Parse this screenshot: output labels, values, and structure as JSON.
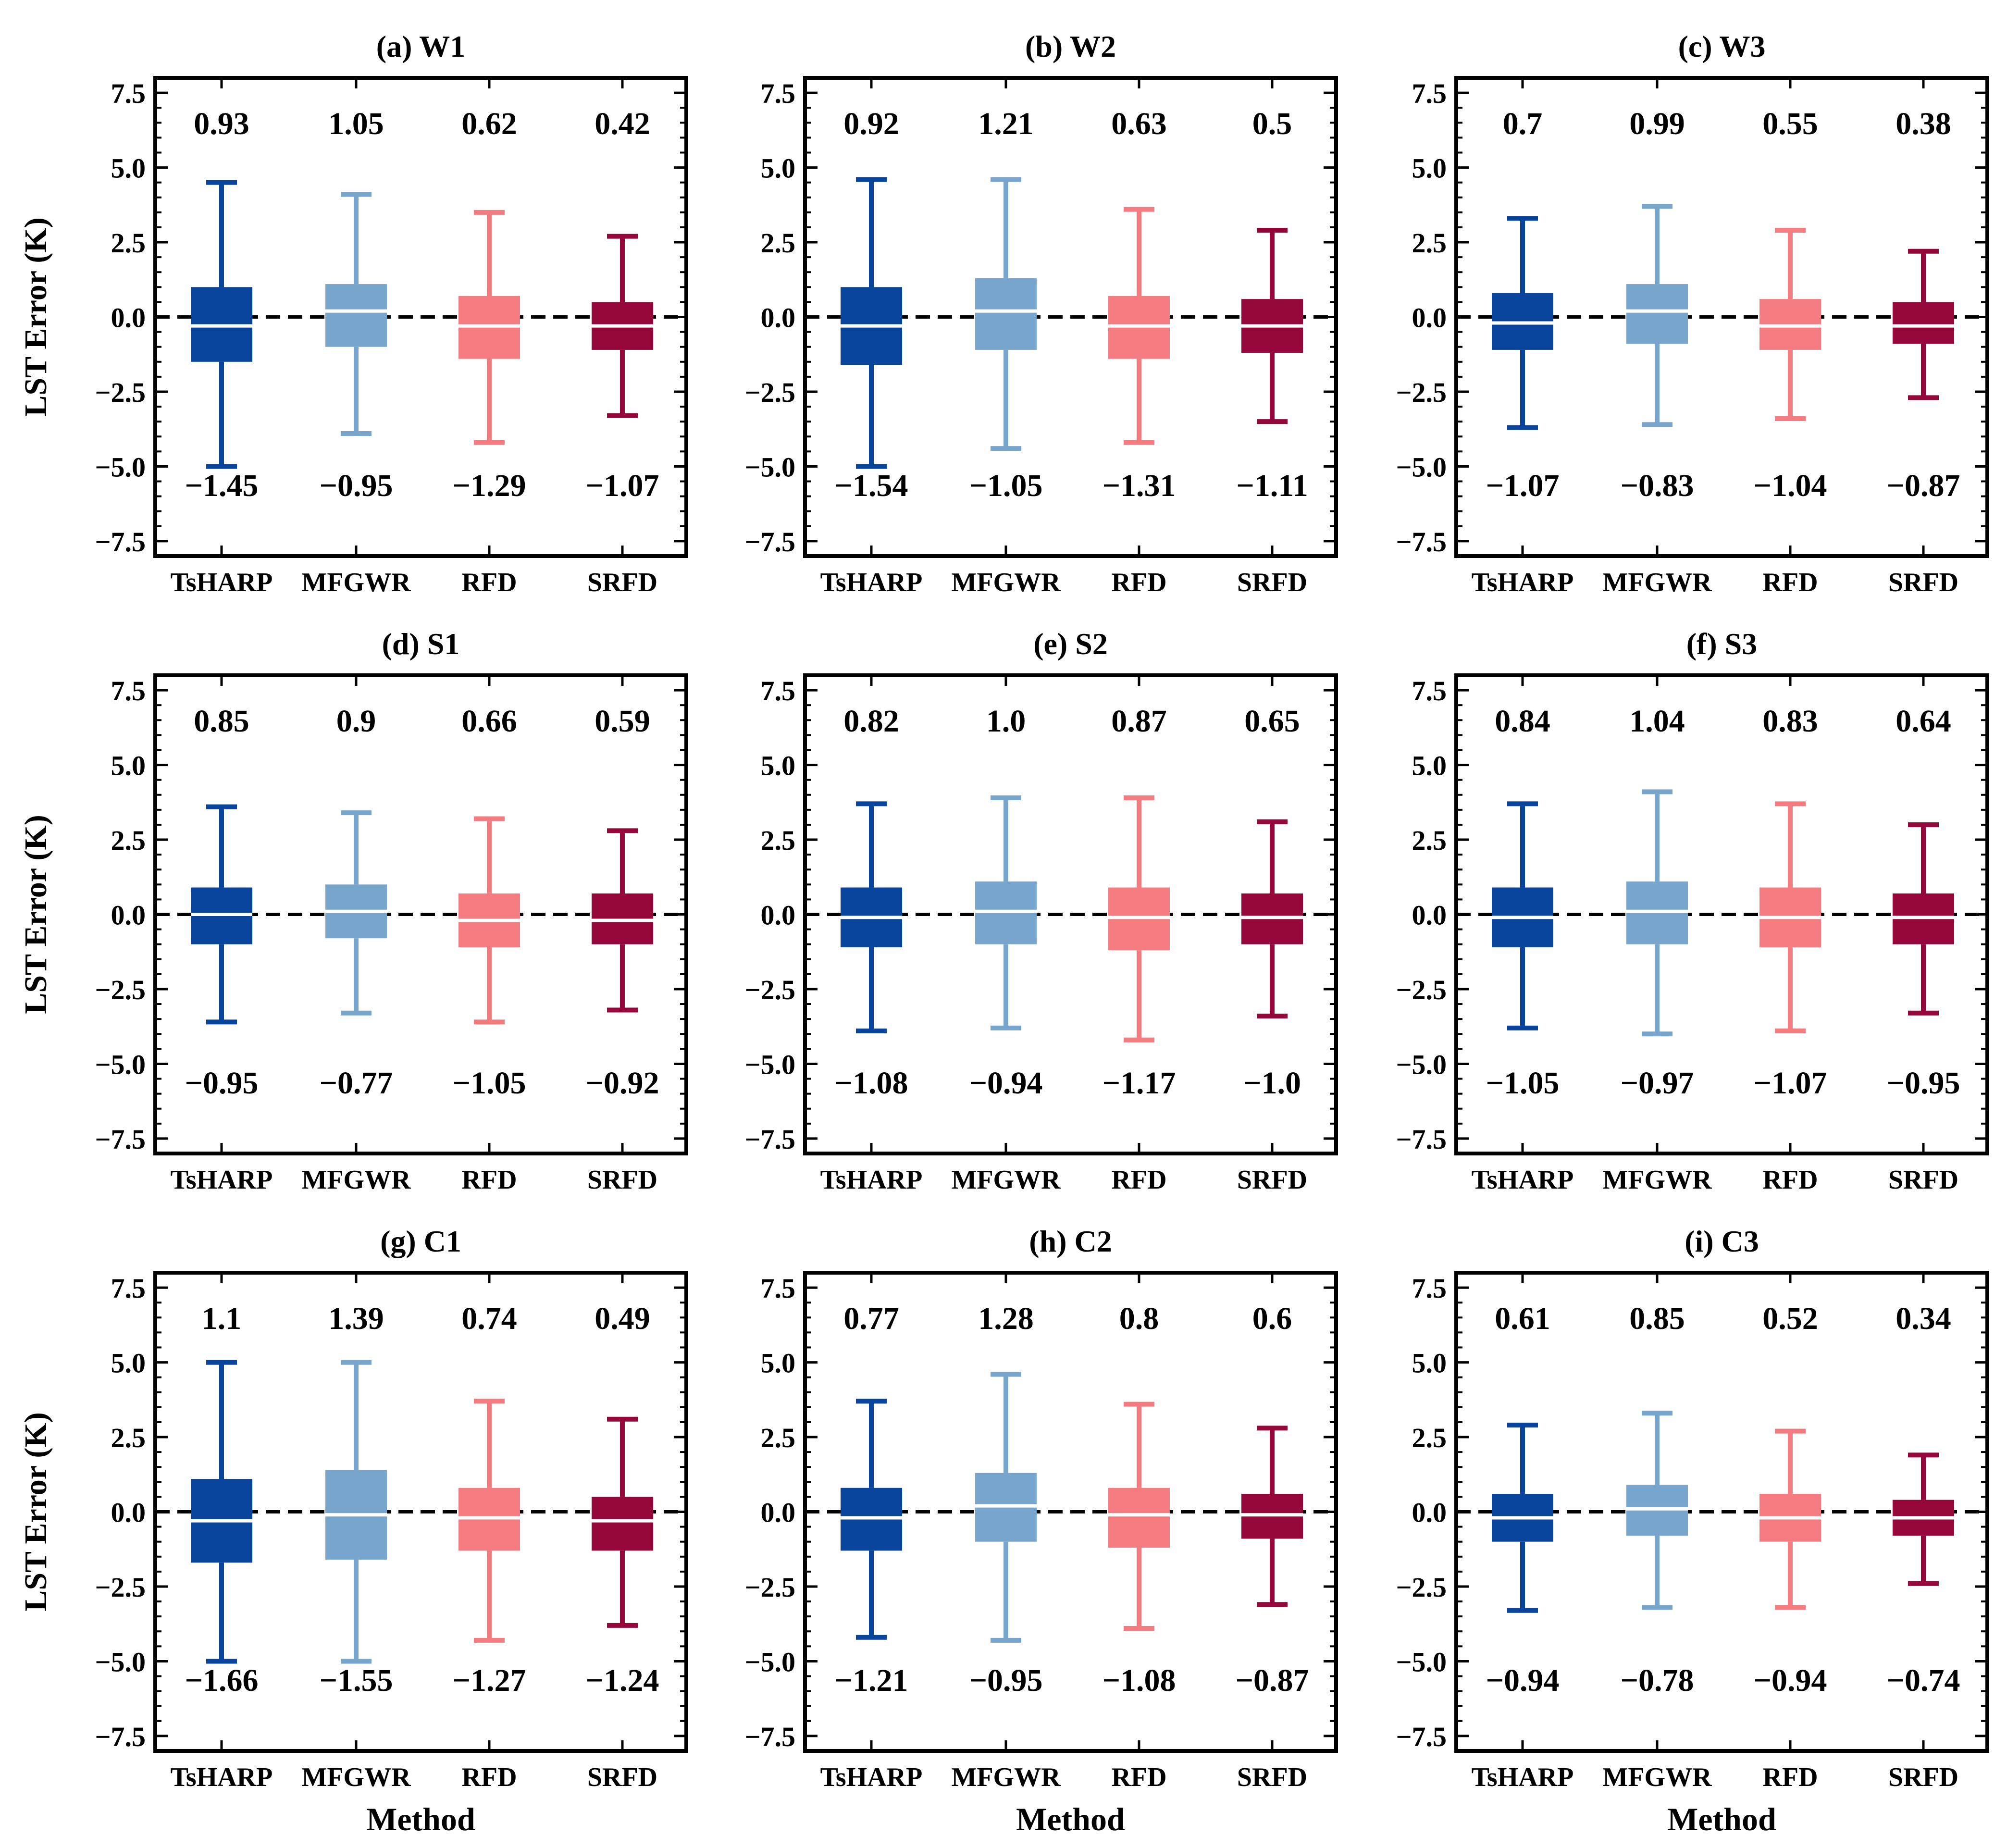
{
  "chart_data": {
    "type": "box",
    "ylabel": "LST Error (K)",
    "xlabel": "Method",
    "ylim": [
      -8.0,
      8.0
    ],
    "yticks": [
      -7.5,
      -5.0,
      -2.5,
      0.0,
      2.5,
      5.0,
      7.5
    ],
    "ytick_labels": [
      "−7.5",
      "−5.0",
      "−2.5",
      "0.0",
      "2.5",
      "5.0",
      "7.5"
    ],
    "categories": [
      "TsHARP",
      "MFGWR",
      "RFD",
      "SRFD"
    ],
    "colors": {
      "TsHARP": "#08449b",
      "MFGWR": "#77a5cb",
      "RFD": "#f47c80",
      "SRFD": "#95063b"
    },
    "median_color": "#ffffff",
    "zero_line": {
      "value": 0.0,
      "style": "dashed",
      "color": "#000000"
    },
    "panels": [
      {
        "title": "(a) W1",
        "upper_labels": [
          "0.93",
          "1.05",
          "0.62",
          "0.42"
        ],
        "lower_labels": [
          "-1.45",
          "-0.95",
          "-1.29",
          "-1.07"
        ],
        "boxes": [
          {
            "whisker_low": -5.0,
            "q1": -1.5,
            "median": -0.3,
            "q3": 1.0,
            "whisker_high": 4.5
          },
          {
            "whisker_low": -3.9,
            "q1": -1.0,
            "median": 0.2,
            "q3": 1.1,
            "whisker_high": 4.1
          },
          {
            "whisker_low": -4.2,
            "q1": -1.4,
            "median": -0.3,
            "q3": 0.7,
            "whisker_high": 3.5
          },
          {
            "whisker_low": -3.3,
            "q1": -1.1,
            "median": -0.3,
            "q3": 0.5,
            "whisker_high": 2.7
          }
        ]
      },
      {
        "title": "(b) W2",
        "upper_labels": [
          "0.92",
          "1.21",
          "0.63",
          "0.5"
        ],
        "lower_labels": [
          "-1.54",
          "-1.05",
          "-1.31",
          "-1.11"
        ],
        "boxes": [
          {
            "whisker_low": -5.0,
            "q1": -1.6,
            "median": -0.3,
            "q3": 1.0,
            "whisker_high": 4.6
          },
          {
            "whisker_low": -4.4,
            "q1": -1.1,
            "median": 0.2,
            "q3": 1.3,
            "whisker_high": 4.6
          },
          {
            "whisker_low": -4.2,
            "q1": -1.4,
            "median": -0.3,
            "q3": 0.7,
            "whisker_high": 3.6
          },
          {
            "whisker_low": -3.5,
            "q1": -1.2,
            "median": -0.3,
            "q3": 0.6,
            "whisker_high": 2.9
          }
        ]
      },
      {
        "title": "(c) W3",
        "upper_labels": [
          "0.7",
          "0.99",
          "0.55",
          "0.38"
        ],
        "lower_labels": [
          "-1.07",
          "-0.83",
          "-1.04",
          "-0.87"
        ],
        "boxes": [
          {
            "whisker_low": -3.7,
            "q1": -1.1,
            "median": -0.2,
            "q3": 0.8,
            "whisker_high": 3.3
          },
          {
            "whisker_low": -3.6,
            "q1": -0.9,
            "median": 0.2,
            "q3": 1.1,
            "whisker_high": 3.7
          },
          {
            "whisker_low": -3.4,
            "q1": -1.1,
            "median": -0.3,
            "q3": 0.6,
            "whisker_high": 2.9
          },
          {
            "whisker_low": -2.7,
            "q1": -0.9,
            "median": -0.3,
            "q3": 0.5,
            "whisker_high": 2.2
          }
        ]
      },
      {
        "title": "(d) S1",
        "upper_labels": [
          "0.85",
          "0.9",
          "0.66",
          "0.59"
        ],
        "lower_labels": [
          "-0.95",
          "-0.77",
          "-1.05",
          "-0.92"
        ],
        "boxes": [
          {
            "whisker_low": -3.6,
            "q1": -1.0,
            "median": 0.0,
            "q3": 0.9,
            "whisker_high": 3.6
          },
          {
            "whisker_low": -3.3,
            "q1": -0.8,
            "median": 0.1,
            "q3": 1.0,
            "whisker_high": 3.4
          },
          {
            "whisker_low": -3.6,
            "q1": -1.1,
            "median": -0.2,
            "q3": 0.7,
            "whisker_high": 3.2
          },
          {
            "whisker_low": -3.2,
            "q1": -1.0,
            "median": -0.2,
            "q3": 0.7,
            "whisker_high": 2.8
          }
        ]
      },
      {
        "title": "(e) S2",
        "upper_labels": [
          "0.82",
          "1.0",
          "0.87",
          "0.65"
        ],
        "lower_labels": [
          "-1.08",
          "-0.94",
          "-1.17",
          "-1.0"
        ],
        "boxes": [
          {
            "whisker_low": -3.9,
            "q1": -1.1,
            "median": -0.1,
            "q3": 0.9,
            "whisker_high": 3.7
          },
          {
            "whisker_low": -3.8,
            "q1": -1.0,
            "median": 0.1,
            "q3": 1.1,
            "whisker_high": 3.9
          },
          {
            "whisker_low": -4.2,
            "q1": -1.2,
            "median": -0.1,
            "q3": 0.9,
            "whisker_high": 3.9
          },
          {
            "whisker_low": -3.4,
            "q1": -1.0,
            "median": -0.1,
            "q3": 0.7,
            "whisker_high": 3.1
          }
        ]
      },
      {
        "title": "(f) S3",
        "upper_labels": [
          "0.84",
          "1.04",
          "0.83",
          "0.64"
        ],
        "lower_labels": [
          "-1.05",
          "-0.97",
          "-1.07",
          "-0.95"
        ],
        "boxes": [
          {
            "whisker_low": -3.8,
            "q1": -1.1,
            "median": -0.1,
            "q3": 0.9,
            "whisker_high": 3.7
          },
          {
            "whisker_low": -4.0,
            "q1": -1.0,
            "median": 0.1,
            "q3": 1.1,
            "whisker_high": 4.1
          },
          {
            "whisker_low": -3.9,
            "q1": -1.1,
            "median": -0.1,
            "q3": 0.9,
            "whisker_high": 3.7
          },
          {
            "whisker_low": -3.3,
            "q1": -1.0,
            "median": -0.1,
            "q3": 0.7,
            "whisker_high": 3.0
          }
        ]
      },
      {
        "title": "(g) C1",
        "upper_labels": [
          "1.1",
          "1.39",
          "0.74",
          "0.49"
        ],
        "lower_labels": [
          "-1.66",
          "-1.55",
          "-1.27",
          "-1.24"
        ],
        "boxes": [
          {
            "whisker_low": -5.0,
            "q1": -1.7,
            "median": -0.3,
            "q3": 1.1,
            "whisker_high": 5.0
          },
          {
            "whisker_low": -5.0,
            "q1": -1.6,
            "median": -0.1,
            "q3": 1.4,
            "whisker_high": 5.0
          },
          {
            "whisker_low": -4.3,
            "q1": -1.3,
            "median": -0.2,
            "q3": 0.8,
            "whisker_high": 3.7
          },
          {
            "whisker_low": -3.8,
            "q1": -1.3,
            "median": -0.3,
            "q3": 0.5,
            "whisker_high": 3.1
          }
        ]
      },
      {
        "title": "(h) C2",
        "upper_labels": [
          "0.77",
          "1.28",
          "0.8",
          "0.6"
        ],
        "lower_labels": [
          "-1.21",
          "-0.95",
          "-1.08",
          "-0.87"
        ],
        "boxes": [
          {
            "whisker_low": -4.2,
            "q1": -1.3,
            "median": -0.2,
            "q3": 0.8,
            "whisker_high": 3.7
          },
          {
            "whisker_low": -4.3,
            "q1": -1.0,
            "median": 0.2,
            "q3": 1.3,
            "whisker_high": 4.6
          },
          {
            "whisker_low": -3.9,
            "q1": -1.2,
            "median": -0.1,
            "q3": 0.8,
            "whisker_high": 3.6
          },
          {
            "whisker_low": -3.1,
            "q1": -0.9,
            "median": -0.1,
            "q3": 0.6,
            "whisker_high": 2.8
          }
        ]
      },
      {
        "title": "(i) C3",
        "upper_labels": [
          "0.61",
          "0.85",
          "0.52",
          "0.34"
        ],
        "lower_labels": [
          "-0.94",
          "-0.78",
          "-0.94",
          "-0.74"
        ],
        "boxes": [
          {
            "whisker_low": -3.3,
            "q1": -1.0,
            "median": -0.2,
            "q3": 0.6,
            "whisker_high": 2.9
          },
          {
            "whisker_low": -3.2,
            "q1": -0.8,
            "median": 0.1,
            "q3": 0.9,
            "whisker_high": 3.3
          },
          {
            "whisker_low": -3.2,
            "q1": -1.0,
            "median": -0.2,
            "q3": 0.6,
            "whisker_high": 2.7
          },
          {
            "whisker_low": -2.4,
            "q1": -0.8,
            "median": -0.2,
            "q3": 0.4,
            "whisker_high": 1.9
          }
        ]
      }
    ]
  }
}
